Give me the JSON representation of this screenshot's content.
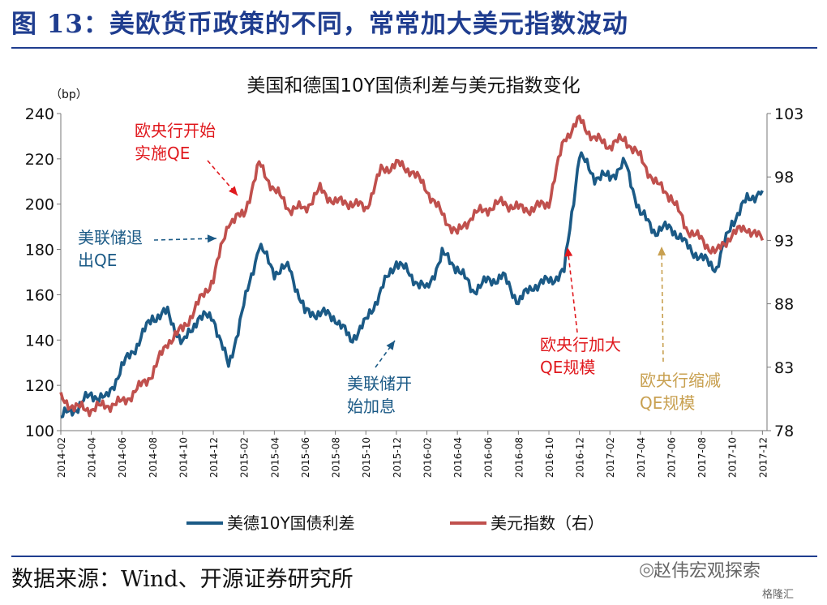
{
  "figure": {
    "title": "图 13：美欧货币政策的不同，常常加大美元指数波动",
    "source": "数据来源：Wind、开源证券研究所",
    "watermark": "赵伟宏观探索",
    "logo": "格隆汇"
  },
  "chart_data": {
    "type": "line",
    "title": "美国和德国10Y国债利差与美元指数变化",
    "ylabel_left": "（bp）",
    "ylim_left": [
      100,
      240
    ],
    "yticks_left": [
      "100",
      "120",
      "140",
      "160",
      "180",
      "200",
      "220",
      "240"
    ],
    "ylim_right": [
      78,
      103
    ],
    "yticks_right": [
      "78",
      "83",
      "88",
      "93",
      "98",
      "103"
    ],
    "x_tick_labels": [
      "2014-02",
      "2014-04",
      "2014-06",
      "2014-08",
      "2014-10",
      "2014-12",
      "2015-02",
      "2015-04",
      "2015-06",
      "2015-08",
      "2015-10",
      "2015-12",
      "2016-02",
      "2016-04",
      "2016-06",
      "2016-08",
      "2016-10",
      "2016-12",
      "2017-02",
      "2017-04",
      "2017-06",
      "2017-08",
      "2017-10",
      "2017-12"
    ],
    "grid": false,
    "legend_position": "bottom",
    "series": [
      {
        "name": "美德10Y国债利差",
        "axis": "left",
        "color": "#1b5a86",
        "x": [
          "2014-02",
          "2014-03",
          "2014-04",
          "2014-05",
          "2014-06",
          "2014-07",
          "2014-08",
          "2014-09",
          "2014-10",
          "2014-11",
          "2014-12",
          "2015-01",
          "2015-02",
          "2015-03",
          "2015-04",
          "2015-05",
          "2015-06",
          "2015-07",
          "2015-08",
          "2015-09",
          "2015-10",
          "2015-11",
          "2015-12",
          "2016-01",
          "2016-02",
          "2016-03",
          "2016-04",
          "2016-05",
          "2016-06",
          "2016-07",
          "2016-08",
          "2016-09",
          "2016-10",
          "2016-11",
          "2016-12",
          "2017-01",
          "2017-02",
          "2017-03",
          "2017-04",
          "2017-05",
          "2017-06",
          "2017-07",
          "2017-08",
          "2017-09",
          "2017-10",
          "2017-11",
          "2017-12"
        ],
        "values": [
          106,
          110,
          116,
          114,
          128,
          138,
          150,
          152,
          138,
          150,
          150,
          128,
          155,
          182,
          170,
          172,
          152,
          152,
          150,
          140,
          148,
          162,
          175,
          168,
          162,
          178,
          172,
          162,
          166,
          168,
          157,
          164,
          166,
          170,
          222,
          212,
          212,
          218,
          196,
          188,
          190,
          182,
          176,
          172,
          192,
          202,
          206
        ]
      },
      {
        "name": "美元指数（右）",
        "axis": "right",
        "color": "#c0504d",
        "x": [
          "2014-02",
          "2014-03",
          "2014-04",
          "2014-05",
          "2014-06",
          "2014-07",
          "2014-08",
          "2014-09",
          "2014-10",
          "2014-11",
          "2014-12",
          "2015-01",
          "2015-02",
          "2015-03",
          "2015-04",
          "2015-05",
          "2015-06",
          "2015-07",
          "2015-08",
          "2015-09",
          "2015-10",
          "2015-11",
          "2015-12",
          "2016-01",
          "2016-02",
          "2016-03",
          "2016-04",
          "2016-05",
          "2016-06",
          "2016-07",
          "2016-08",
          "2016-09",
          "2016-10",
          "2016-11",
          "2016-12",
          "2017-01",
          "2017-02",
          "2017-03",
          "2017-04",
          "2017-05",
          "2017-06",
          "2017-07",
          "2017-08",
          "2017-09",
          "2017-10",
          "2017-11",
          "2017-12"
        ],
        "values": [
          80.5,
          79.8,
          79.7,
          80.0,
          80.2,
          81.2,
          82.5,
          85.0,
          86.0,
          88.0,
          90.0,
          94.5,
          95.0,
          99.0,
          97.0,
          95.5,
          95.5,
          97.0,
          96.0,
          96.0,
          95.5,
          98.5,
          99.0,
          98.5,
          97.0,
          95.0,
          93.5,
          95.0,
          95.5,
          96.0,
          95.5,
          95.5,
          96.0,
          101.0,
          102.5,
          101.0,
          100.5,
          101.0,
          99.5,
          97.5,
          96.5,
          94.0,
          93.0,
          92.0,
          93.5,
          94.0,
          93.0
        ]
      }
    ]
  },
  "annotations": {
    "ecb_qe_start": [
      "欧央行开始",
      "实施QE"
    ],
    "fed_exit_qe": [
      "美联储退",
      "出QE"
    ],
    "fed_hike": [
      "美联储开",
      "始加息"
    ],
    "ecb_expand_qe": [
      "欧央行加大",
      "QE规模"
    ],
    "ecb_taper_qe": [
      "欧央行缩减",
      "QE规模"
    ]
  },
  "colors": {
    "title": "#1f3d8f",
    "annotation_red": "#e0191e",
    "annotation_blue": "#1b5a86",
    "annotation_gold": "#c8a050"
  }
}
